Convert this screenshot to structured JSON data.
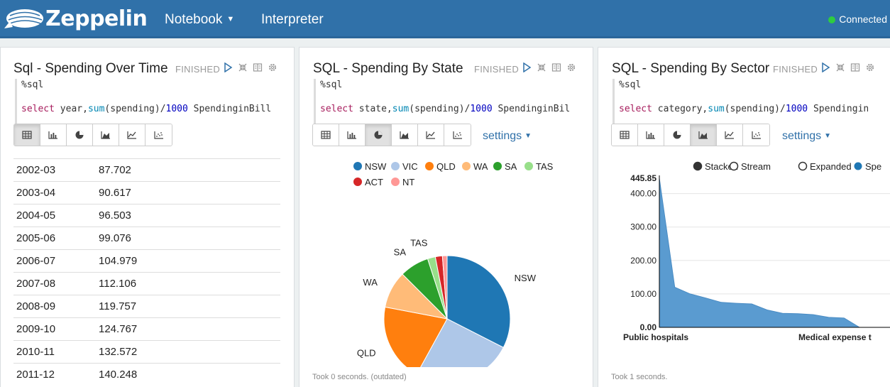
{
  "app": {
    "brand": "Zeppelin",
    "status": "Connected"
  },
  "nav": {
    "notebook": "Notebook",
    "interpreter": "Interpreter"
  },
  "panels": [
    {
      "title": "Sql - Spending Over Time",
      "status": "FINISHED",
      "code_directive": "%sql",
      "code_select": "select",
      "code_mid": " year,",
      "code_fn": "sum",
      "code_rest": "(spending)/",
      "code_num": "1000",
      "code_tail": " SpendinginBill",
      "table": [
        {
          "year": "2002-03",
          "value": "87.702"
        },
        {
          "year": "2003-04",
          "value": "90.617"
        },
        {
          "year": "2004-05",
          "value": "96.503"
        },
        {
          "year": "2005-06",
          "value": "99.076"
        },
        {
          "year": "2006-07",
          "value": "104.979"
        },
        {
          "year": "2007-08",
          "value": "112.106"
        },
        {
          "year": "2008-09",
          "value": "119.757"
        },
        {
          "year": "2009-10",
          "value": "124.767"
        },
        {
          "year": "2010-11",
          "value": "132.572"
        },
        {
          "year": "2011-12",
          "value": "140.248"
        }
      ]
    },
    {
      "title": "SQL - Spending By State",
      "status": "FINISHED",
      "code_directive": "%sql",
      "code_select": "select",
      "code_mid": " state,",
      "code_fn": "sum",
      "code_rest": "(spending)/",
      "code_num": "1000",
      "code_tail": " SpendinginBil",
      "settings": "settings",
      "took": "Took 0 seconds. (outdated)"
    },
    {
      "title": "SQL - Spending By Sector",
      "status": "FINISHED",
      "code_directive": "%sql",
      "code_select": "select",
      "code_mid": " category,",
      "code_fn": "sum",
      "code_rest": "(spending)/",
      "code_num": "1000",
      "code_tail": " Spendingin",
      "settings": "settings",
      "took": "Took 1 seconds."
    }
  ],
  "chart_data": [
    {
      "type": "pie",
      "categories": [
        "NSW",
        "VIC",
        "QLD",
        "WA",
        "SA",
        "TAS",
        "ACT",
        "NT"
      ],
      "values": [
        32.5,
        25.5,
        20.0,
        9.5,
        7.5,
        2.0,
        1.8,
        1.2
      ],
      "legend": "top",
      "colors": [
        "#1f77b4",
        "#aec7e8",
        "#ff7f0e",
        "#ffbb78",
        "#2ca02c",
        "#98df8a",
        "#d62728",
        "#ff9896"
      ]
    },
    {
      "type": "area",
      "mode_options": [
        "Stacked",
        "Stream",
        "Expanded"
      ],
      "series_label": "Spe",
      "x_first_label": "Public hospitals",
      "x_last_label": "Medical expense t",
      "y_max_label": "445.85",
      "y_ticks": [
        "400.00",
        "300.00",
        "200.00",
        "100.00",
        "0.00"
      ],
      "y_tick_values": [
        400,
        300,
        200,
        100,
        0
      ],
      "ylim": [
        0,
        445.85
      ],
      "values": [
        445.85,
        120,
        100,
        88,
        75,
        72,
        70,
        52,
        42,
        41,
        38,
        30,
        28,
        0
      ],
      "color": "#5a9bd0"
    }
  ]
}
